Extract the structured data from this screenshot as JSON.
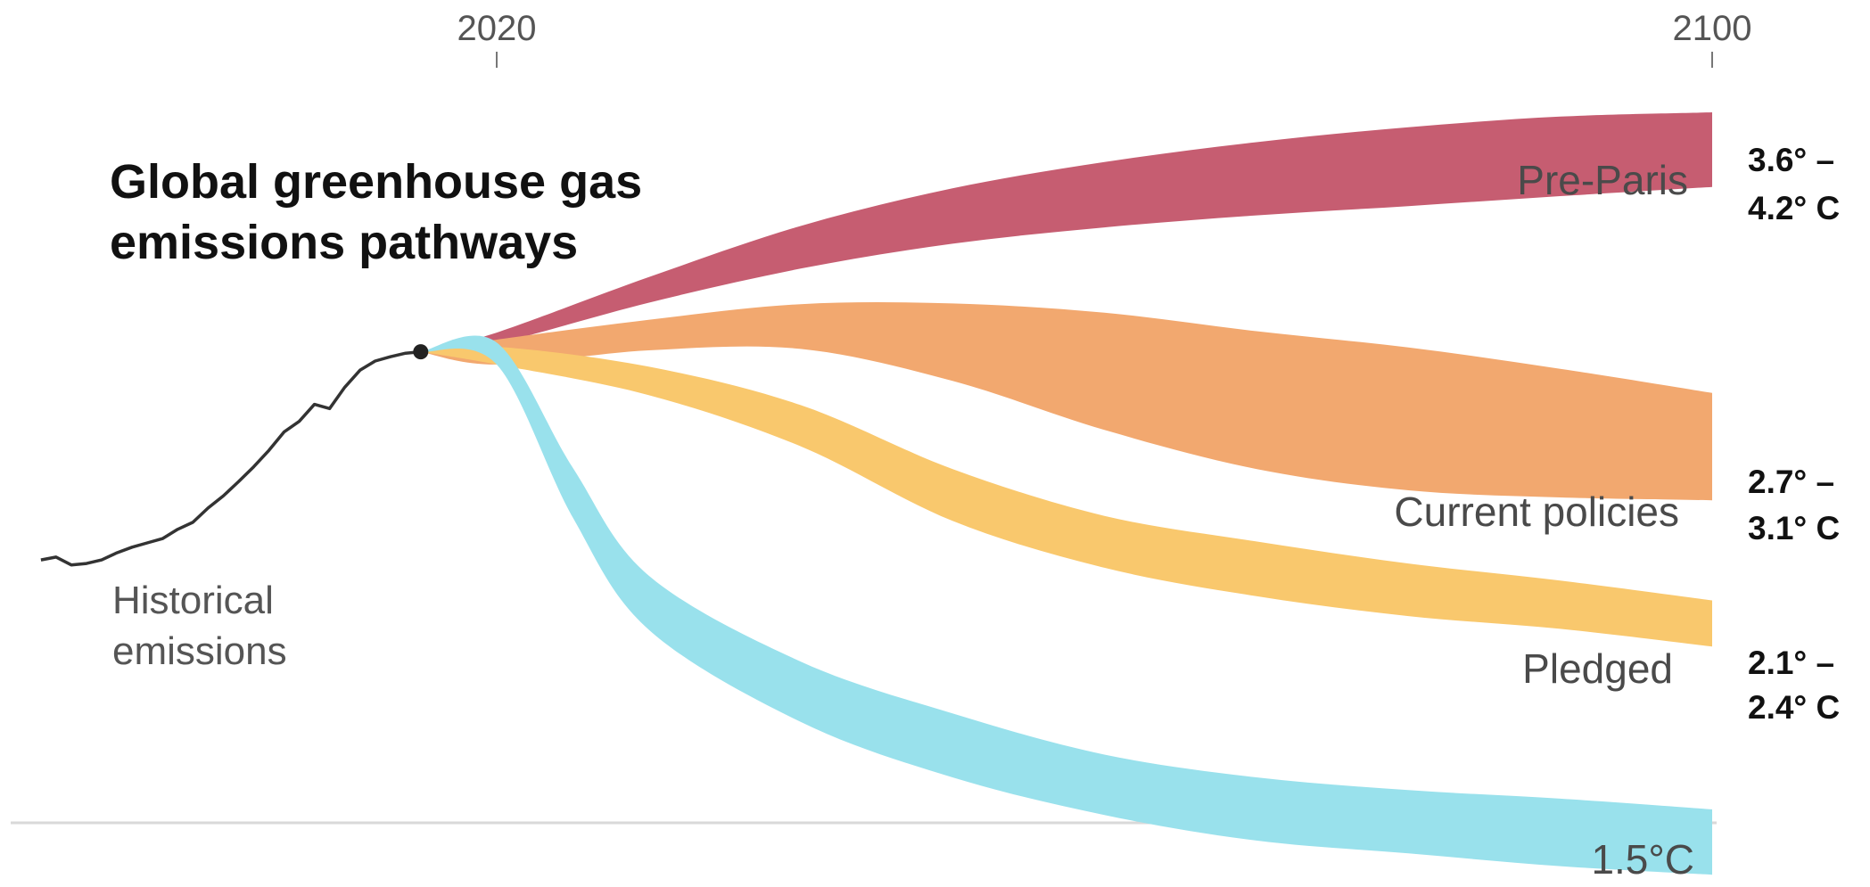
{
  "chart_data": {
    "type": "area",
    "title_lines": [
      "Global greenhouse gas",
      "emissions pathways"
    ],
    "x_ticks": [
      "2020",
      "2100"
    ],
    "x_tick_years": [
      2020,
      2100
    ],
    "ylim": [
      0,
      100
    ],
    "historical": {
      "name": "Historical emissions",
      "label_lines": [
        "Historical",
        "emissions"
      ],
      "x": [
        1990,
        1991,
        1992,
        1993,
        1994,
        1995,
        1996,
        1997,
        1998,
        1999,
        2000,
        2001,
        2002,
        2003,
        2004,
        2005,
        2006,
        2007,
        2008,
        2009,
        2010,
        2011,
        2012,
        2013,
        2014,
        2015
      ],
      "y": [
        37.0,
        37.4,
        36.3,
        36.5,
        37.0,
        38.0,
        38.8,
        39.4,
        40.0,
        41.3,
        42.3,
        44.3,
        46.0,
        48.0,
        50.1,
        52.4,
        55.0,
        56.5,
        58.9,
        58.3,
        61.3,
        63.7,
        65.0,
        65.6,
        66.1,
        66.3
      ]
    },
    "series": [
      {
        "name": "Pre-Paris",
        "label": "Pre-Paris",
        "temp_lines": [
          "3.6° –",
          "4.2° C"
        ],
        "color": "#c65d71",
        "x": [
          2015,
          2020,
          2030,
          2040,
          2050,
          2060,
          2070,
          2080,
          2090,
          2100
        ],
        "upper": [
          66.3,
          69.0,
          76.8,
          84.0,
          89.3,
          93.0,
          95.8,
          97.9,
          99.4,
          100.0
        ],
        "lower": [
          66.3,
          67.5,
          73.2,
          78.0,
          81.5,
          83.8,
          85.5,
          86.8,
          88.2,
          89.5
        ]
      },
      {
        "name": "Current policies",
        "label": "Current policies",
        "temp_lines": [
          "2.7° –",
          "3.1° C"
        ],
        "color": "#f2a86f",
        "x": [
          2015,
          2020,
          2030,
          2040,
          2050,
          2060,
          2070,
          2080,
          2090,
          2100
        ],
        "upper": [
          66.3,
          68.0,
          70.8,
          73.0,
          73.1,
          71.8,
          69.2,
          66.9,
          63.9,
          60.5
        ],
        "lower": [
          66.3,
          64.5,
          66.5,
          66.7,
          62.2,
          55.3,
          49.8,
          46.8,
          45.8,
          45.4
        ]
      },
      {
        "name": "Pledged",
        "label": "Pledged",
        "temp_lines": [
          "2.1° –",
          "2.4° C"
        ],
        "color": "#f9c86d",
        "x": [
          2015,
          2020,
          2030,
          2040,
          2050,
          2060,
          2070,
          2080,
          2090,
          2100
        ],
        "upper": [
          66.3,
          67.0,
          64.2,
          58.8,
          49.8,
          43.2,
          39.6,
          36.5,
          34.1,
          31.3
        ],
        "lower": [
          66.3,
          64.5,
          60.2,
          53.0,
          42.5,
          35.9,
          31.9,
          29.1,
          27.3,
          24.8
        ]
      },
      {
        "name": "1.5°C",
        "label": "1.5°C",
        "color": "#99e1ec",
        "x": [
          2015,
          2020,
          2025,
          2030,
          2040,
          2050,
          2060,
          2070,
          2080,
          2090,
          2100
        ],
        "upper": [
          66.3,
          67.6,
          50.0,
          34.8,
          22.7,
          15.4,
          9.6,
          6.4,
          4.6,
          3.4,
          1.9
        ],
        "lower": [
          66.3,
          64.5,
          43.0,
          27.2,
          14.2,
          6.4,
          1.1,
          -2.5,
          -4.3,
          -6.1,
          -7.3
        ]
      }
    ]
  }
}
